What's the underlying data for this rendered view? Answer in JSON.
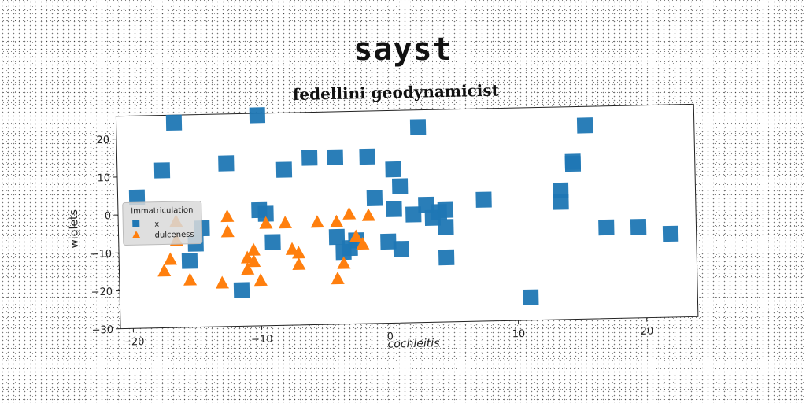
{
  "super_title": "sayst",
  "chart_data": {
    "type": "scatter",
    "title": "fedellini geodynamicist",
    "xlabel": "cochleitis",
    "ylabel": "wiglets",
    "xlim": [
      -21,
      24
    ],
    "ylim": [
      -30,
      26
    ],
    "xticks": [
      -20,
      -10,
      0,
      10,
      20
    ],
    "yticks": [
      -30,
      -20,
      -10,
      0,
      10,
      20
    ],
    "grid": false,
    "legend": {
      "title": "immatriculation",
      "placement": "center-left"
    },
    "series": [
      {
        "name": "x",
        "marker": "square",
        "color": "#1f77b4",
        "points": [
          [
            -16.5,
            24
          ],
          [
            -10,
            25.5
          ],
          [
            -17.5,
            11.5
          ],
          [
            -12.5,
            13
          ],
          [
            -8,
            11
          ],
          [
            -6,
            14
          ],
          [
            -4,
            14
          ],
          [
            -1.5,
            14
          ],
          [
            0.5,
            10.5
          ],
          [
            1,
            6
          ],
          [
            2.5,
            21.5
          ],
          [
            -19.5,
            4.5
          ],
          [
            -14.5,
            -4
          ],
          [
            -15,
            -8
          ],
          [
            -15.5,
            -12.5
          ],
          [
            -10,
            0.5
          ],
          [
            -9.5,
            -0.5
          ],
          [
            -9,
            -8
          ],
          [
            -4,
            -7
          ],
          [
            -3.5,
            -11
          ],
          [
            -3,
            -10
          ],
          [
            -2.5,
            -8
          ],
          [
            -1,
            3
          ],
          [
            0.5,
            0
          ],
          [
            0,
            -8.5
          ],
          [
            1,
            -10.5
          ],
          [
            2,
            -1.5
          ],
          [
            3,
            1
          ],
          [
            3.5,
            -2.5
          ],
          [
            4,
            -1
          ],
          [
            4.5,
            -0.5
          ],
          [
            4.5,
            -5
          ],
          [
            4.5,
            -13
          ],
          [
            7.5,
            2
          ],
          [
            11,
            -24
          ],
          [
            13.5,
            4
          ],
          [
            13.5,
            1
          ],
          [
            14.5,
            11
          ],
          [
            14.5,
            11.5
          ],
          [
            15.5,
            21
          ],
          [
            17,
            -6
          ],
          [
            19.5,
            -6
          ],
          [
            22,
            -8
          ],
          [
            -11.5,
            -20.5
          ]
        ]
      },
      {
        "name": "dulceness",
        "marker": "triangle",
        "color": "#ff7f0e",
        "points": [
          [
            -16.5,
            -2
          ],
          [
            -16.5,
            -7
          ],
          [
            -17,
            -12
          ],
          [
            -17.5,
            -15
          ],
          [
            -15.5,
            -17.5
          ],
          [
            -13,
            -18.5
          ],
          [
            -12.5,
            -1
          ],
          [
            -12.5,
            -5
          ],
          [
            -11,
            -12
          ],
          [
            -11,
            -15
          ],
          [
            -10.5,
            -13
          ],
          [
            -10.5,
            -10
          ],
          [
            -10,
            -18
          ],
          [
            -9.5,
            -3
          ],
          [
            -8,
            -3
          ],
          [
            -7.5,
            -10
          ],
          [
            -7,
            -11
          ],
          [
            -7,
            -14
          ],
          [
            -5.5,
            -3
          ],
          [
            -4,
            -3
          ],
          [
            -3.5,
            -14
          ],
          [
            -4,
            -18
          ],
          [
            -3,
            -1
          ],
          [
            -2.5,
            -7
          ],
          [
            -2,
            -9
          ],
          [
            -1.5,
            -1.5
          ]
        ]
      }
    ]
  }
}
